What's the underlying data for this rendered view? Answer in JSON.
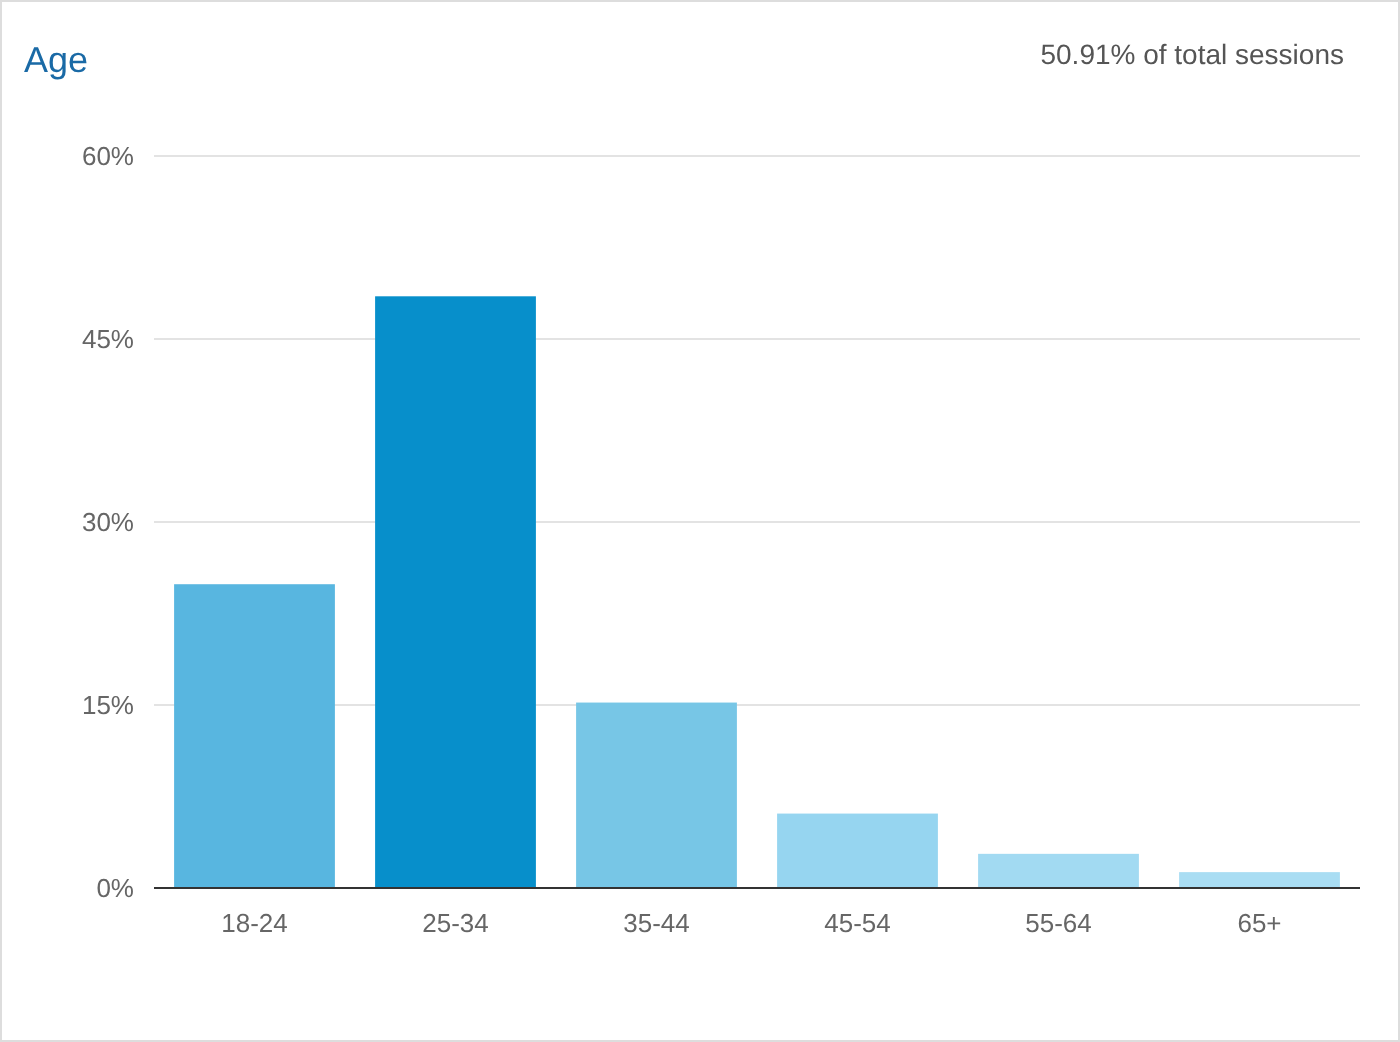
{
  "chart_data": {
    "type": "bar",
    "title": "Age",
    "subtitle": "50.91% of total sessions",
    "categories": [
      "18-24",
      "25-34",
      "35-44",
      "45-54",
      "55-64",
      "65+"
    ],
    "values": [
      24.9,
      48.5,
      15.2,
      6.1,
      2.8,
      1.3
    ],
    "colors": [
      "#58b6e0",
      "#078fcb",
      "#77c6e6",
      "#96d5f0",
      "#a2daf2",
      "#a9ddf3"
    ],
    "ylim": [
      0,
      60
    ],
    "yticks": [
      {
        "value": 0,
        "label": "0%"
      },
      {
        "value": 15,
        "label": "15%"
      },
      {
        "value": 30,
        "label": "30%"
      },
      {
        "value": 45,
        "label": "45%"
      },
      {
        "value": 60,
        "label": "60%"
      }
    ],
    "grid": "y"
  }
}
